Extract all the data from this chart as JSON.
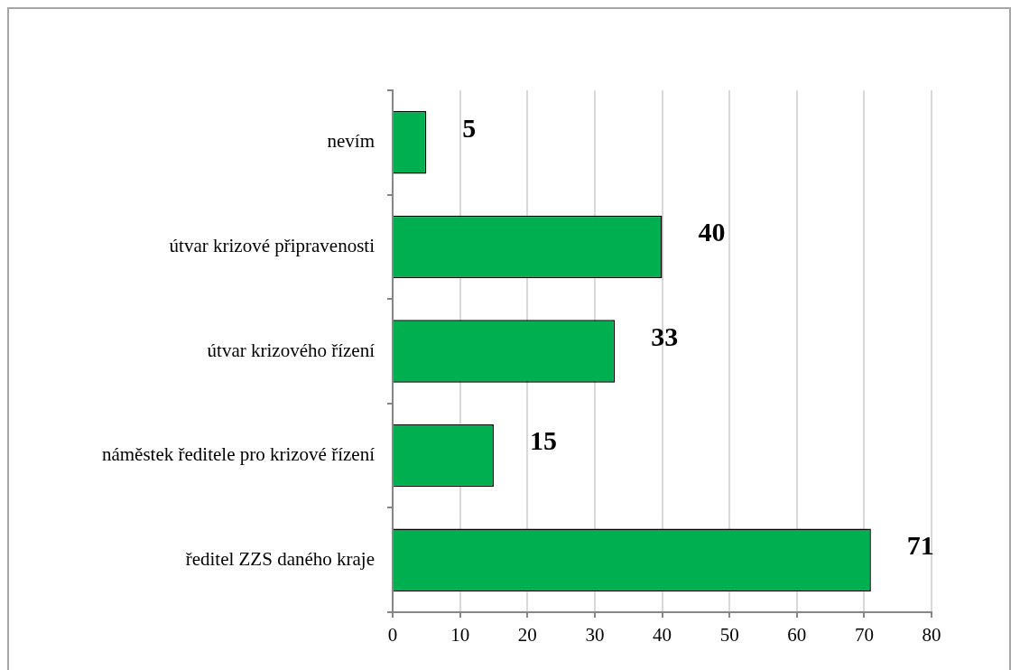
{
  "chart_data": {
    "type": "bar",
    "orientation": "horizontal",
    "categories": [
      "nevím",
      "útvar krizové připravenosti",
      "útvar krizového řízení",
      "náměstek ředitele pro krizové řízení",
      "ředitel ZZS daného kraje"
    ],
    "values": [
      5,
      40,
      33,
      15,
      71
    ],
    "color": "#00b050",
    "xlim": [
      0,
      80
    ],
    "xticks": [
      0,
      10,
      20,
      30,
      40,
      50,
      60,
      70,
      80
    ],
    "grid": "x",
    "data_labels": true,
    "legend": false
  }
}
